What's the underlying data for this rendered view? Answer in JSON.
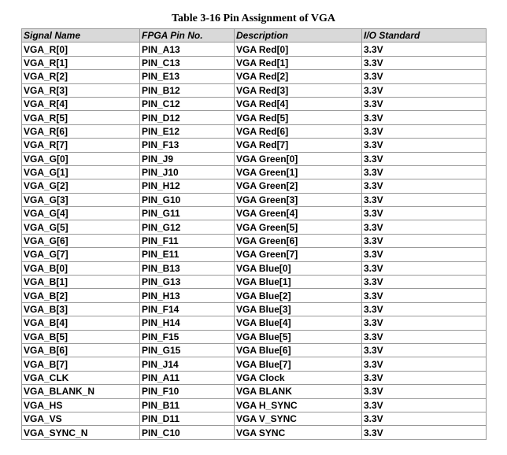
{
  "title": "Table 3-16 Pin Assignment of VGA",
  "table": {
    "header": [
      "Signal Name",
      "FPGA Pin No.",
      "Description",
      "I/O Standard"
    ],
    "rows": [
      [
        "VGA_R[0]",
        "PIN_A13",
        "VGA Red[0]",
        "3.3V"
      ],
      [
        "VGA_R[1]",
        "PIN_C13",
        "VGA Red[1]",
        "3.3V"
      ],
      [
        "VGA_R[2]",
        "PIN_E13",
        "VGA Red[2]",
        "3.3V"
      ],
      [
        "VGA_R[3]",
        "PIN_B12",
        "VGA Red[3]",
        "3.3V"
      ],
      [
        "VGA_R[4]",
        "PIN_C12",
        "VGA Red[4]",
        "3.3V"
      ],
      [
        "VGA_R[5]",
        "PIN_D12",
        "VGA Red[5]",
        "3.3V"
      ],
      [
        "VGA_R[6]",
        "PIN_E12",
        "VGA Red[6]",
        "3.3V"
      ],
      [
        "VGA_R[7]",
        "PIN_F13",
        "VGA Red[7]",
        "3.3V"
      ],
      [
        "VGA_G[0]",
        "PIN_J9",
        "VGA Green[0]",
        "3.3V"
      ],
      [
        "VGA_G[1]",
        "PIN_J10",
        "VGA Green[1]",
        "3.3V"
      ],
      [
        "VGA_G[2]",
        "PIN_H12",
        "VGA Green[2]",
        "3.3V"
      ],
      [
        "VGA_G[3]",
        "PIN_G10",
        "VGA Green[3]",
        "3.3V"
      ],
      [
        "VGA_G[4]",
        "PIN_G11",
        "VGA Green[4]",
        "3.3V"
      ],
      [
        "VGA_G[5]",
        "PIN_G12",
        "VGA Green[5]",
        "3.3V"
      ],
      [
        "VGA_G[6]",
        "PIN_F11",
        "VGA Green[6]",
        "3.3V"
      ],
      [
        "VGA_G[7]",
        "PIN_E11",
        "VGA Green[7]",
        "3.3V"
      ],
      [
        "VGA_B[0]",
        "PIN_B13",
        "VGA Blue[0]",
        "3.3V"
      ],
      [
        "VGA_B[1]",
        "PIN_G13",
        "VGA Blue[1]",
        "3.3V"
      ],
      [
        "VGA_B[2]",
        "PIN_H13",
        "VGA Blue[2]",
        "3.3V"
      ],
      [
        "VGA_B[3]",
        "PIN_F14",
        "VGA Blue[3]",
        "3.3V"
      ],
      [
        "VGA_B[4]",
        "PIN_H14",
        "VGA Blue[4]",
        "3.3V"
      ],
      [
        "VGA_B[5]",
        "PIN_F15",
        "VGA Blue[5]",
        "3.3V"
      ],
      [
        "VGA_B[6]",
        "PIN_G15",
        "VGA Blue[6]",
        "3.3V"
      ],
      [
        "VGA_B[7]",
        "PIN_J14",
        "VGA Blue[7]",
        "3.3V"
      ],
      [
        "VGA_CLK",
        "PIN_A11",
        "VGA Clock",
        "3.3V"
      ],
      [
        "VGA_BLANK_N",
        "PIN_F10",
        "VGA BLANK",
        "3.3V"
      ],
      [
        "VGA_HS",
        "PIN_B11",
        "VGA H_SYNC",
        "3.3V"
      ],
      [
        "VGA_VS",
        "PIN_D11",
        "VGA V_SYNC",
        "3.3V"
      ],
      [
        "VGA_SYNC_N",
        "PIN_C10",
        "VGA SYNC",
        "3.3V"
      ]
    ]
  }
}
